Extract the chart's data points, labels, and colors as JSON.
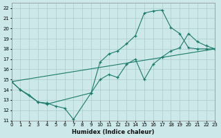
{
  "xlabel": "Humidex (Indice chaleur)",
  "bg_color": "#cce8e8",
  "grid_color": "#aacccc",
  "line_color": "#1a7a6a",
  "xlim": [
    0,
    23
  ],
  "ylim": [
    11,
    22.5
  ],
  "xticks": [
    0,
    1,
    2,
    3,
    4,
    5,
    6,
    7,
    8,
    9,
    10,
    11,
    12,
    13,
    14,
    15,
    16,
    17,
    18,
    19,
    20,
    21,
    22,
    23
  ],
  "yticks": [
    11,
    12,
    13,
    14,
    15,
    16,
    17,
    18,
    19,
    20,
    21,
    22
  ],
  "curve1_x": [
    0,
    1,
    3,
    4,
    5,
    6,
    7,
    9,
    10,
    11,
    12,
    13,
    14,
    15,
    16,
    17,
    18,
    19,
    20,
    21,
    22,
    23
  ],
  "curve1_y": [
    14.8,
    14.0,
    12.8,
    12.7,
    12.4,
    12.2,
    11.1,
    13.7,
    16.7,
    17.5,
    17.8,
    18.5,
    19.3,
    21.5,
    21.7,
    21.8,
    20.1,
    19.5,
    18.1,
    18.0,
    18.0,
    18.0
  ],
  "curve2_x": [
    0,
    1,
    2,
    3,
    4,
    9,
    10,
    11,
    12,
    13,
    14,
    15,
    16,
    17,
    18,
    19,
    20,
    21,
    22,
    23
  ],
  "curve2_y": [
    14.8,
    14.0,
    13.5,
    12.8,
    12.6,
    13.7,
    15.0,
    15.5,
    15.2,
    16.5,
    17.0,
    15.0,
    16.5,
    17.2,
    17.8,
    18.1,
    19.5,
    18.7,
    18.3,
    18.0
  ],
  "curve3_x": [
    0,
    23
  ],
  "curve3_y": [
    14.8,
    18.0
  ]
}
